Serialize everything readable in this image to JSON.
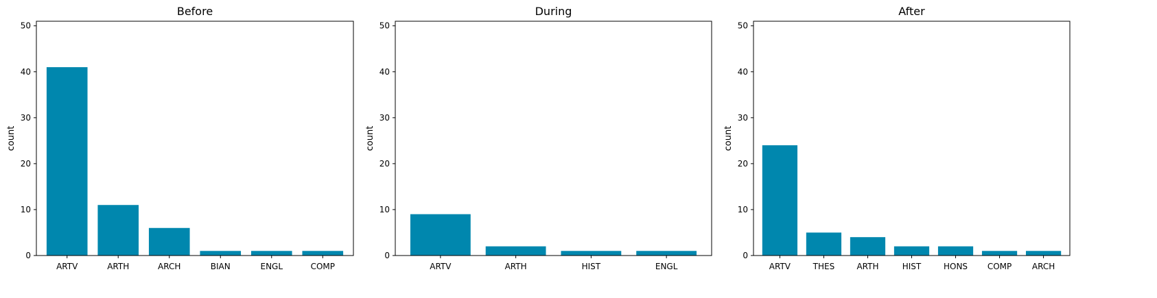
{
  "bar_color": "#0087AE",
  "chart_data": [
    {
      "type": "bar",
      "title": "Before",
      "xlabel": "",
      "ylabel": "count",
      "ylim": [
        0,
        51
      ],
      "yticks": [
        0,
        10,
        20,
        30,
        40,
        50
      ],
      "grid": false,
      "categories": [
        "ARTV",
        "ARTH",
        "ARCH",
        "BIAN",
        "ENGL",
        "COMP"
      ],
      "values": [
        41,
        11,
        6,
        1,
        1,
        1
      ]
    },
    {
      "type": "bar",
      "title": "During",
      "xlabel": "",
      "ylabel": "count",
      "ylim": [
        0,
        51
      ],
      "yticks": [
        0,
        10,
        20,
        30,
        40,
        50
      ],
      "grid": false,
      "categories": [
        "ARTV",
        "ARTH",
        "HIST",
        "ENGL"
      ],
      "values": [
        9,
        2,
        1,
        1
      ]
    },
    {
      "type": "bar",
      "title": "After",
      "xlabel": "",
      "ylabel": "count",
      "ylim": [
        0,
        51
      ],
      "yticks": [
        0,
        10,
        20,
        30,
        40,
        50
      ],
      "grid": false,
      "categories": [
        "ARTV",
        "THES",
        "ARTH",
        "HIST",
        "HONS",
        "COMP",
        "ARCH"
      ],
      "values": [
        24,
        5,
        4,
        2,
        2,
        1,
        1
      ]
    }
  ]
}
